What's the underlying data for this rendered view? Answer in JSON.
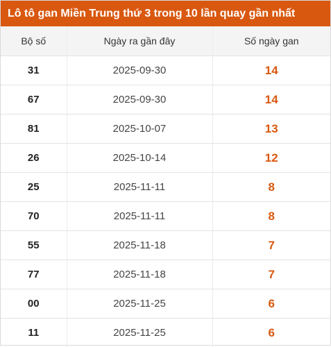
{
  "title": "Lô tô gan Miền Trung thứ 3 trong 10 lần quay gần nhất",
  "headers": {
    "col1": "Bộ số",
    "col2": "Ngày ra gần đây",
    "col3": "Số ngày gan"
  },
  "rows": [
    {
      "number": "31",
      "date": "2025-09-30",
      "gan": "14"
    },
    {
      "number": "67",
      "date": "2025-09-30",
      "gan": "14"
    },
    {
      "number": "81",
      "date": "2025-10-07",
      "gan": "13"
    },
    {
      "number": "26",
      "date": "2025-10-14",
      "gan": "12"
    },
    {
      "number": "25",
      "date": "2025-11-11",
      "gan": "8"
    },
    {
      "number": "70",
      "date": "2025-11-11",
      "gan": "8"
    },
    {
      "number": "55",
      "date": "2025-11-18",
      "gan": "7"
    },
    {
      "number": "77",
      "date": "2025-11-18",
      "gan": "7"
    },
    {
      "number": "00",
      "date": "2025-11-25",
      "gan": "6"
    },
    {
      "number": "11",
      "date": "2025-11-25",
      "gan": "6"
    }
  ],
  "colors": {
    "accent": "#d9580f",
    "header_bg": "#f4f4f4"
  }
}
